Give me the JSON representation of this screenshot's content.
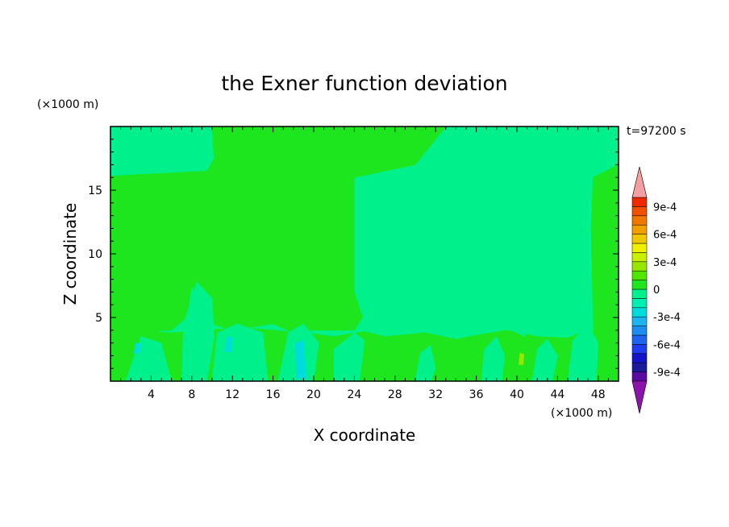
{
  "chart_data": {
    "type": "heatmap",
    "title": "the Exner function deviation",
    "xlabel": "X coordinate",
    "ylabel": "Z coordinate",
    "x_unit": "(×1000 m)",
    "y_unit": "(×1000 m)",
    "time_label": "t=97200 s",
    "xlim": [
      0,
      50
    ],
    "ylim": [
      0,
      20
    ],
    "xticks": [
      4,
      8,
      12,
      16,
      20,
      24,
      28,
      32,
      36,
      40,
      44,
      48
    ],
    "yticks": [
      5,
      10,
      15
    ],
    "colorbar": {
      "levels": [
        -0.001,
        -0.0009,
        -0.0008,
        -0.0007,
        -0.0006,
        -0.0005,
        -0.0004,
        -0.0003,
        -0.0002,
        -0.0001,
        0,
        0.0001,
        0.0002,
        0.0003,
        0.0004,
        0.0005,
        0.0006,
        0.0007,
        0.0008,
        0.0009,
        0.001
      ],
      "colors": [
        "#5a0ca0",
        "#1a1a9a",
        "#1414c8",
        "#1e3cf0",
        "#1e64f0",
        "#1e8cf0",
        "#1eb4f0",
        "#00dcdc",
        "#00f0b4",
        "#00f08c",
        "#1ee61e",
        "#50e600",
        "#96e600",
        "#c8f000",
        "#f0f000",
        "#f0c800",
        "#f0a000",
        "#f07800",
        "#f05000",
        "#f02800"
      ],
      "over_color": "#f4a0a0",
      "under_color": "#8c14aa",
      "labels": [
        {
          "value": 0.0009,
          "text": "9e-4"
        },
        {
          "value": 0.0006,
          "text": "6e-4"
        },
        {
          "value": 0.0003,
          "text": "3e-4"
        },
        {
          "value": 0,
          "text": "0"
        },
        {
          "value": -0.0003,
          "text": "-3e-4"
        },
        {
          "value": -0.0006,
          "text": "-6e-4"
        },
        {
          "value": -0.0009,
          "text": "-9e-4"
        }
      ]
    },
    "field_colors": {
      "slightly_negative": "#00f08c",
      "slightly_positive": "#1ee61e",
      "negative_patch": "#00dcdc",
      "positive_patch": "#96e600"
    },
    "regions": [
      {
        "value_class": "slightly_negative",
        "x": [
          0,
          50
        ],
        "z": [
          0,
          20
        ]
      },
      {
        "value_class": "slightly_positive",
        "polygon": [
          [
            0,
            16.1
          ],
          [
            9.5,
            16.5
          ],
          [
            10.2,
            17.5
          ],
          [
            10,
            20
          ],
          [
            33,
            20
          ],
          [
            31,
            18
          ],
          [
            30,
            17
          ],
          [
            24,
            16
          ],
          [
            24,
            7
          ],
          [
            24.8,
            5
          ],
          [
            24,
            4
          ],
          [
            20,
            4
          ],
          [
            18,
            3.8
          ],
          [
            16,
            4.5
          ],
          [
            12,
            4
          ],
          [
            10,
            4.5
          ],
          [
            9,
            6
          ],
          [
            8,
            7.5
          ],
          [
            7.5,
            5
          ],
          [
            6,
            4
          ],
          [
            3,
            3.9
          ],
          [
            0,
            4
          ]
        ]
      },
      {
        "value_class": "slightly_positive",
        "polygon": [
          [
            0,
            0
          ],
          [
            50,
            0
          ],
          [
            50,
            3.5
          ],
          [
            47,
            4
          ],
          [
            45,
            3.4
          ],
          [
            42,
            3.5
          ],
          [
            39,
            4
          ],
          [
            36,
            3.6
          ],
          [
            34,
            3.3
          ],
          [
            31,
            3.8
          ],
          [
            27,
            3.5
          ],
          [
            25,
            3.9
          ],
          [
            22,
            3.5
          ],
          [
            19,
            3.8
          ],
          [
            16,
            4
          ],
          [
            13,
            4.2
          ],
          [
            9,
            4
          ],
          [
            6,
            3.8
          ],
          [
            3,
            4
          ],
          [
            0,
            4
          ]
        ]
      },
      {
        "value_class": "slightly_positive",
        "polygon": [
          [
            47.5,
            16
          ],
          [
            50,
            17
          ],
          [
            50,
            0
          ],
          [
            47.8,
            0
          ],
          [
            47.5,
            5
          ],
          [
            47.3,
            12
          ]
        ]
      },
      {
        "value_class": "slightly_negative",
        "polygon": [
          [
            1.5,
            0
          ],
          [
            3,
            3.5
          ],
          [
            5,
            3
          ],
          [
            6,
            0
          ]
        ]
      },
      {
        "value_class": "slightly_negative",
        "polygon": [
          [
            7,
            0
          ],
          [
            7.2,
            4.5
          ],
          [
            8.5,
            7.8
          ],
          [
            10,
            6.5
          ],
          [
            10.2,
            3.5
          ],
          [
            9.5,
            0
          ]
        ]
      },
      {
        "value_class": "slightly_negative",
        "polygon": [
          [
            10,
            0
          ],
          [
            10.5,
            3.8
          ],
          [
            12.5,
            4.5
          ],
          [
            15,
            3.8
          ],
          [
            15.5,
            0
          ]
        ]
      },
      {
        "value_class": "slightly_negative",
        "polygon": [
          [
            16.5,
            0
          ],
          [
            17.5,
            3.8
          ],
          [
            19,
            4.5
          ],
          [
            20.5,
            3
          ],
          [
            20,
            0
          ]
        ]
      },
      {
        "value_class": "slightly_negative",
        "polygon": [
          [
            22,
            0
          ],
          [
            22,
            2.5
          ],
          [
            24,
            3.8
          ],
          [
            25,
            3.2
          ],
          [
            24.5,
            0
          ]
        ]
      },
      {
        "value_class": "slightly_negative",
        "polygon": [
          [
            30,
            0
          ],
          [
            30.5,
            2.2
          ],
          [
            31.5,
            2.8
          ],
          [
            32,
            1
          ],
          [
            31.5,
            0
          ]
        ]
      },
      {
        "value_class": "slightly_negative",
        "polygon": [
          [
            36.5,
            0
          ],
          [
            36.8,
            2.5
          ],
          [
            38,
            3.5
          ],
          [
            38.8,
            2
          ],
          [
            38.5,
            0
          ]
        ]
      },
      {
        "value_class": "slightly_negative",
        "polygon": [
          [
            39.5,
            4
          ],
          [
            40.5,
            6.7
          ],
          [
            41.3,
            6.5
          ],
          [
            40.8,
            3.5
          ]
        ]
      },
      {
        "value_class": "slightly_negative",
        "polygon": [
          [
            41.5,
            0
          ],
          [
            42,
            2.5
          ],
          [
            43,
            3.3
          ],
          [
            44,
            2
          ],
          [
            43.5,
            0
          ]
        ]
      },
      {
        "value_class": "slightly_negative",
        "polygon": [
          [
            45,
            0
          ],
          [
            45.5,
            3.2
          ],
          [
            47,
            4.5
          ],
          [
            48,
            3
          ],
          [
            47.8,
            0
          ]
        ]
      },
      {
        "value_class": "negative_patch",
        "polygon": [
          [
            18.3,
            0.2
          ],
          [
            18.2,
            3
          ],
          [
            19,
            3.2
          ],
          [
            19.3,
            0.2
          ]
        ]
      },
      {
        "value_class": "negative_patch",
        "polygon": [
          [
            11.3,
            2.3
          ],
          [
            11.5,
            3.5
          ],
          [
            12,
            3.4
          ],
          [
            11.9,
            2.3
          ]
        ]
      },
      {
        "value_class": "negative_patch",
        "polygon": [
          [
            2.3,
            2.2
          ],
          [
            2.5,
            3
          ],
          [
            3,
            2.9
          ],
          [
            2.9,
            2.2
          ]
        ]
      },
      {
        "value_class": "positive_patch",
        "polygon": [
          [
            40.2,
            1.3
          ],
          [
            40.3,
            2.2
          ],
          [
            40.7,
            2.1
          ],
          [
            40.6,
            1.3
          ]
        ]
      }
    ]
  }
}
